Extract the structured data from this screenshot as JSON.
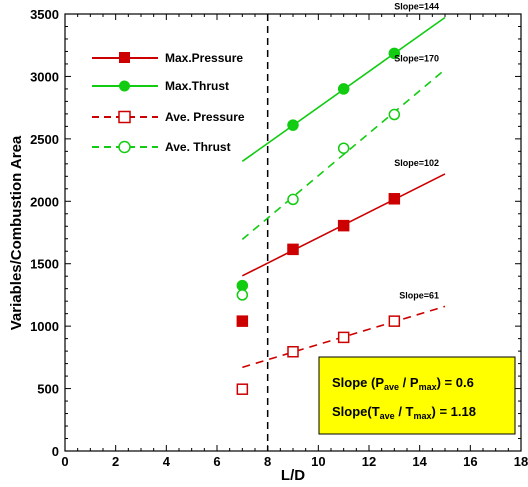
{
  "chart_data": {
    "type": "scatter",
    "xlabel": "L/D",
    "ylabel": "Variables/Combustion Area",
    "xlim": [
      0,
      18
    ],
    "ylim": [
      0,
      3500
    ],
    "xticks": [
      0,
      2,
      4,
      6,
      8,
      10,
      12,
      14,
      16,
      18
    ],
    "yticks": [
      0,
      500,
      1000,
      1500,
      2000,
      2500,
      3000,
      3500
    ],
    "grid": false,
    "legend_position": "top-left",
    "vertical_reference_line": {
      "x": 8,
      "style": "dashed",
      "color": "#000000"
    },
    "series": [
      {
        "name": "Max.Pressure",
        "color": "#cc0000",
        "marker": "filled-square",
        "line_style": "solid",
        "x": [
          7,
          9,
          11,
          13
        ],
        "y": [
          1040,
          1615,
          1805,
          2020
        ],
        "fit_line": {
          "x": [
            7,
            15
          ],
          "y": [
            1403,
            2219
          ]
        },
        "slope_label": "Slope=102"
      },
      {
        "name": "Max.Thrust",
        "color": "#11cc11",
        "marker": "filled-circle",
        "line_style": "solid",
        "x": [
          7,
          9,
          11,
          13
        ],
        "y": [
          1325,
          2610,
          2900,
          3185
        ],
        "fit_line": {
          "x": [
            7,
            15
          ],
          "y": [
            2320,
            3472
          ]
        },
        "slope_label": "Slope=144"
      },
      {
        "name": "Ave. Pressure",
        "color": "#cc0000",
        "marker": "open-square",
        "line_style": "dashed",
        "x": [
          7,
          9,
          11,
          13
        ],
        "y": [
          495,
          795,
          910,
          1040
        ],
        "fit_line": {
          "x": [
            7,
            15
          ],
          "y": [
            670,
            1158
          ]
        },
        "slope_label": "Slope=61"
      },
      {
        "name": "Ave. Thrust",
        "color": "#11cc11",
        "marker": "open-circle",
        "line_style": "dashed",
        "x": [
          7,
          9,
          11,
          13
        ],
        "y": [
          1250,
          2015,
          2425,
          2695
        ],
        "fit_line": {
          "x": [
            7,
            15
          ],
          "y": [
            1695,
            3055
          ]
        },
        "slope_label": "Slope=170"
      }
    ],
    "annotation_box": {
      "background": "#ffff00",
      "line1": {
        "prefix": "Slope (P",
        "sub1": "ave",
        "mid": " / P",
        "sub2": "max",
        "suffix": ") = 0.6"
      },
      "line2": {
        "prefix": "Slope(T",
        "sub1": "ave",
        "mid": " / T",
        "sub2": "max",
        "suffix": ") = 1.18"
      }
    }
  }
}
